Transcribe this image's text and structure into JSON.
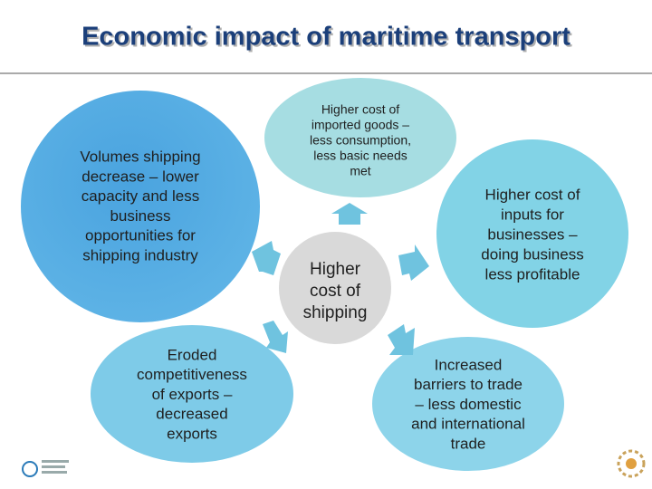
{
  "title": "Economic impact of maritime transport",
  "nodes": [
    {
      "lines": [
        "Higher",
        "cost of",
        "shipping"
      ]
    },
    {
      "lines": [
        "Higher cost of",
        "imported goods –",
        "less consumption,",
        "less basic needs",
        "met"
      ]
    },
    {
      "lines": [
        "Higher cost of",
        "inputs for",
        "businesses –",
        "doing business",
        "less profitable"
      ]
    },
    {
      "lines": [
        "Increased",
        "barriers to trade",
        "– less domestic",
        "and international",
        "trade"
      ]
    },
    {
      "lines": [
        "Eroded",
        "competitiveness",
        "of exports –",
        "decreased",
        "exports"
      ]
    },
    {
      "lines": [
        "Volumes shipping",
        "decrease – lower",
        "capacity and less",
        "business",
        "opportunities for",
        "shipping industry"
      ]
    }
  ]
}
